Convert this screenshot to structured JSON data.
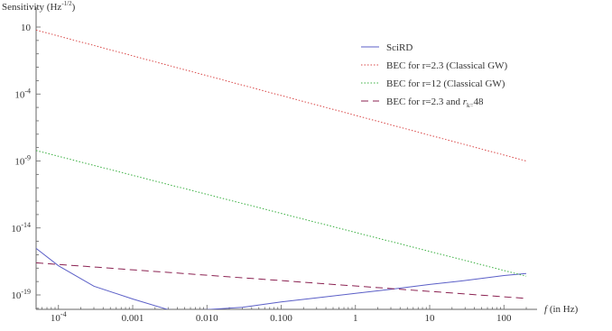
{
  "chart_data": {
    "type": "line",
    "title": "",
    "ylabel": "Sensitivity (Hz",
    "ylabel_exponent": "-1/2",
    "ylabel_close": ")",
    "xlabel_italic": "f",
    "xlabel_rest": "(in Hz)",
    "xscale": "log",
    "yscale": "log",
    "xlim": [
      5e-05,
      250
    ],
    "ylim": [
      1e-20,
      100
    ],
    "grid": false,
    "legend_position": "upper-right",
    "x_ticks": [
      {
        "value": 0.0001,
        "base": "10",
        "exp": "-4"
      },
      {
        "value": 0.001,
        "label": "0.001"
      },
      {
        "value": 0.01,
        "label": "0.010"
      },
      {
        "value": 0.1,
        "label": "0.100"
      },
      {
        "value": 1,
        "label": "1"
      },
      {
        "value": 10,
        "label": "10"
      },
      {
        "value": 100,
        "label": "100"
      }
    ],
    "y_ticks": [
      {
        "value": 10,
        "label": "10"
      },
      {
        "value": 0.0001,
        "base": "10",
        "exp": "-4"
      },
      {
        "value": 1e-09,
        "base": "10",
        "exp": "-9"
      },
      {
        "value": 1e-14,
        "base": "10",
        "exp": "-14"
      },
      {
        "value": 1e-19,
        "base": "10",
        "exp": "-19"
      }
    ],
    "series": [
      {
        "name": "SciRD",
        "color": "#5b5fc7",
        "style": "solid",
        "x": [
          5e-05,
          0.0001,
          0.0003,
          0.001,
          0.003,
          0.005,
          0.01,
          0.03,
          0.1,
          0.3,
          1,
          3,
          10,
          30,
          100,
          200
        ],
        "y": [
          3e-16,
          1.5e-17,
          4.5e-19,
          5e-20,
          8e-21,
          7e-21,
          8e-21,
          1.2e-20,
          3e-20,
          6e-20,
          1.3e-19,
          2.6e-19,
          6e-19,
          1.2e-18,
          2.8e-18,
          4e-18
        ]
      },
      {
        "name": "BEC for r=2.3 (Classical GW)",
        "color": "#d94848",
        "style": "dotted",
        "x": [
          5e-05,
          200
        ],
        "y": [
          6,
          1e-09
        ]
      },
      {
        "name": "BEC for r=12 (Classical GW)",
        "color": "#3cb043",
        "style": "dotted",
        "x": [
          5e-05,
          200
        ],
        "y": [
          6e-09,
          2.5e-18
        ]
      },
      {
        "name": "BEC for r=2.3 and r_k=48",
        "name_main": "BEC for r=2.3 and ",
        "name_italic": "r",
        "name_sub": "k=",
        "name_tail": "48",
        "color": "#8b2252",
        "style": "dashed",
        "x": [
          5e-05,
          200
        ],
        "y": [
          2.5e-17,
          5.5e-20
        ]
      }
    ]
  }
}
